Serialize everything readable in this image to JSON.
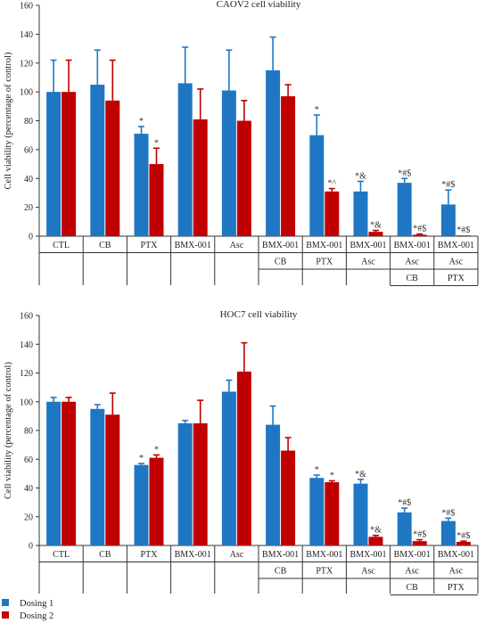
{
  "legend": {
    "items": [
      {
        "name": "Dosing 1",
        "color": "#1f77c4"
      },
      {
        "name": "Dosing 2",
        "color": "#c00000"
      }
    ]
  },
  "chart_data": [
    {
      "type": "bar",
      "title": "CAOV2 cell viability",
      "ylabel": "Cell viability (percentage of control)",
      "ylim": [
        0,
        160
      ],
      "yticks": [
        "0",
        "20",
        "40",
        "60",
        "80",
        "100",
        "120",
        "140",
        "160"
      ],
      "categories": [
        [
          "CTL"
        ],
        [
          "CB"
        ],
        [
          "PTX"
        ],
        [
          "BMX-001"
        ],
        [
          "Asc"
        ],
        [
          "BMX-001",
          "CB"
        ],
        [
          "BMX-001",
          "PTX"
        ],
        [
          "BMX-001",
          "Asc"
        ],
        [
          "BMX-001",
          "Asc",
          "CB"
        ],
        [
          "BMX-001",
          "Asc",
          "PTX"
        ]
      ],
      "series": [
        {
          "name": "Dosing 1",
          "color": "#1f77c4",
          "values": [
            100,
            105,
            71,
            106,
            101,
            115,
            70,
            31,
            37,
            22
          ],
          "errors": [
            22,
            24,
            5,
            25,
            28,
            23,
            14,
            7,
            3,
            10
          ],
          "annotations": [
            "",
            "",
            "*",
            "",
            "",
            "",
            "*",
            "*&",
            "*#$",
            "*#$"
          ]
        },
        {
          "name": "Dosing 2",
          "color": "#c00000",
          "values": [
            100,
            94,
            50,
            81,
            80,
            97,
            31,
            3,
            1,
            0.5
          ],
          "errors": [
            22,
            28,
            11,
            21,
            14,
            8,
            2,
            1,
            0.5,
            0
          ],
          "annotations": [
            "",
            "",
            "*",
            "",
            "",
            "",
            "*^",
            "*&",
            "*#$",
            "*#$"
          ]
        }
      ]
    },
    {
      "type": "bar",
      "title": "HOC7 cell viability",
      "ylabel": "Cell viability (percentage of control)",
      "ylim": [
        0,
        160
      ],
      "yticks": [
        "0",
        "20",
        "40",
        "60",
        "80",
        "100",
        "120",
        "140",
        "160"
      ],
      "categories": [
        [
          "CTL"
        ],
        [
          "CB"
        ],
        [
          "PTX"
        ],
        [
          "BMX-001"
        ],
        [
          "Asc"
        ],
        [
          "BMX-001",
          "CB"
        ],
        [
          "BMX-001",
          "PTX"
        ],
        [
          "BMX-001",
          "Asc"
        ],
        [
          "BMX-001",
          "Asc",
          "CB"
        ],
        [
          "BMX-001",
          "Asc",
          "PTX"
        ]
      ],
      "series": [
        {
          "name": "Dosing 1",
          "color": "#1f77c4",
          "values": [
            100,
            95,
            56,
            85,
            107,
            84,
            47,
            43,
            23,
            17
          ],
          "errors": [
            3,
            3,
            1,
            2,
            8,
            13,
            2,
            3,
            3,
            2
          ],
          "annotations": [
            "",
            "",
            "*",
            "",
            "",
            "",
            "*",
            "*&",
            "*#$",
            "*#$"
          ]
        },
        {
          "name": "Dosing 2",
          "color": "#c00000",
          "values": [
            100,
            91,
            61,
            85,
            121,
            66,
            44,
            6,
            3,
            2.5
          ],
          "errors": [
            3,
            15,
            2,
            16,
            20,
            9,
            1,
            1,
            1,
            0.5
          ],
          "annotations": [
            "",
            "",
            "*",
            "",
            "",
            "",
            "*",
            "*&",
            "*#$",
            "*#$"
          ]
        }
      ]
    }
  ]
}
